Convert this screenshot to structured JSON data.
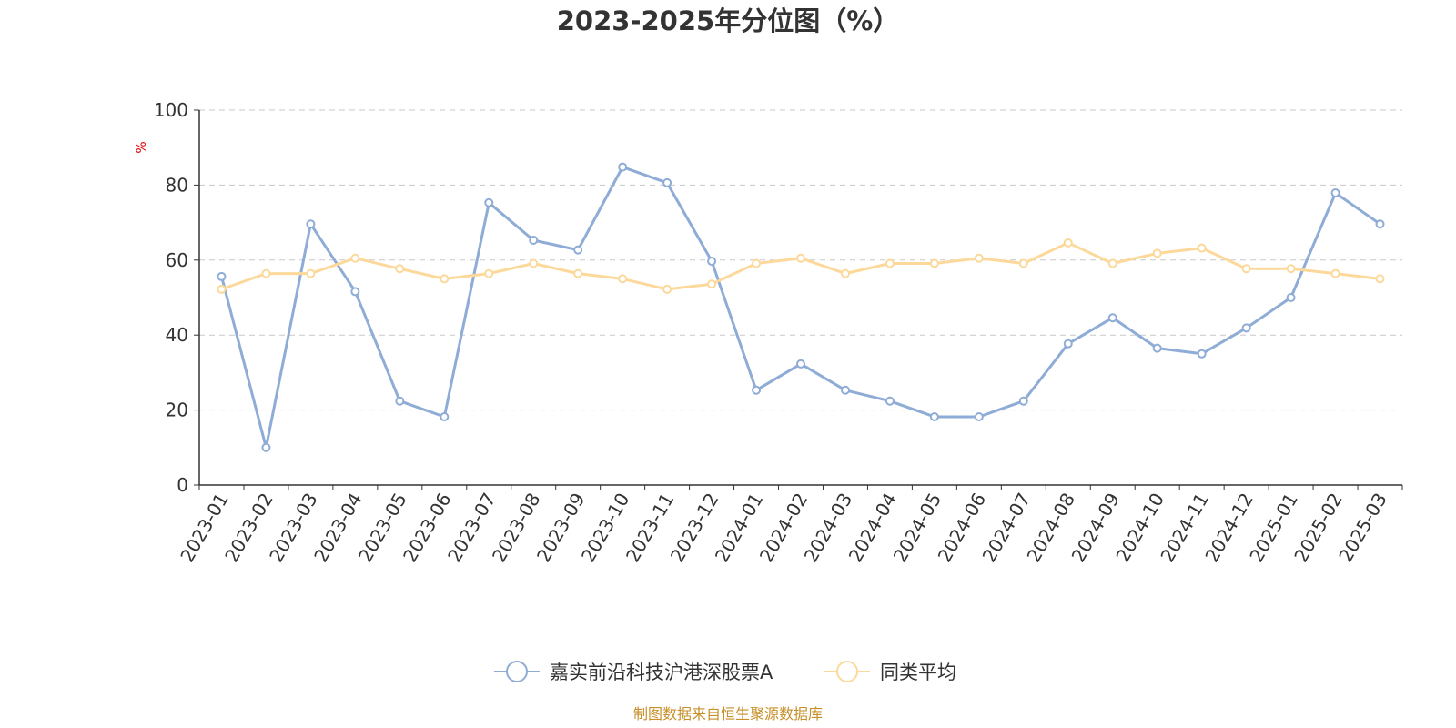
{
  "chart_data": {
    "type": "line",
    "title": "2023-2025年分位图（%）",
    "ylabel": "%",
    "ylim": [
      0,
      100
    ],
    "yticks": [
      "0",
      "20",
      "40",
      "60",
      "80",
      "100"
    ],
    "grid": true,
    "legend_position": "bottom-center",
    "categories": [
      "2023-01",
      "2023-02",
      "2023-03",
      "2023-04",
      "2023-05",
      "2023-06",
      "2023-07",
      "2023-08",
      "2023-09",
      "2023-10",
      "2023-11",
      "2023-12",
      "2024-01",
      "2024-02",
      "2024-03",
      "2024-04",
      "2024-05",
      "2024-06",
      "2024-07",
      "2024-08",
      "2024-09",
      "2024-10",
      "2024-11",
      "2024-12",
      "2025-01",
      "2025-02",
      "2025-03"
    ],
    "series": [
      {
        "name": "嘉实前沿科技沪港深股票A",
        "color": "#8eacd6",
        "values": [
          55.6,
          10.0,
          69.6,
          51.6,
          22.4,
          18.2,
          75.3,
          65.3,
          62.7,
          84.8,
          80.6,
          59.7,
          25.3,
          32.3,
          25.3,
          22.4,
          18.2,
          18.2,
          22.4,
          37.7,
          44.6,
          36.5,
          35.0,
          41.9,
          50.0,
          77.9,
          69.6
        ]
      },
      {
        "name": "同类平均",
        "color": "#fcd99a",
        "values": [
          52.2,
          56.4,
          56.4,
          60.5,
          57.7,
          55.0,
          56.4,
          59.1,
          56.4,
          55.0,
          52.2,
          53.6,
          59.1,
          60.5,
          56.4,
          59.1,
          59.1,
          60.5,
          59.1,
          64.6,
          59.1,
          61.8,
          63.2,
          57.7,
          57.7,
          56.4,
          55.0
        ]
      }
    ]
  },
  "source_text": "制图数据来自恒生聚源数据库"
}
